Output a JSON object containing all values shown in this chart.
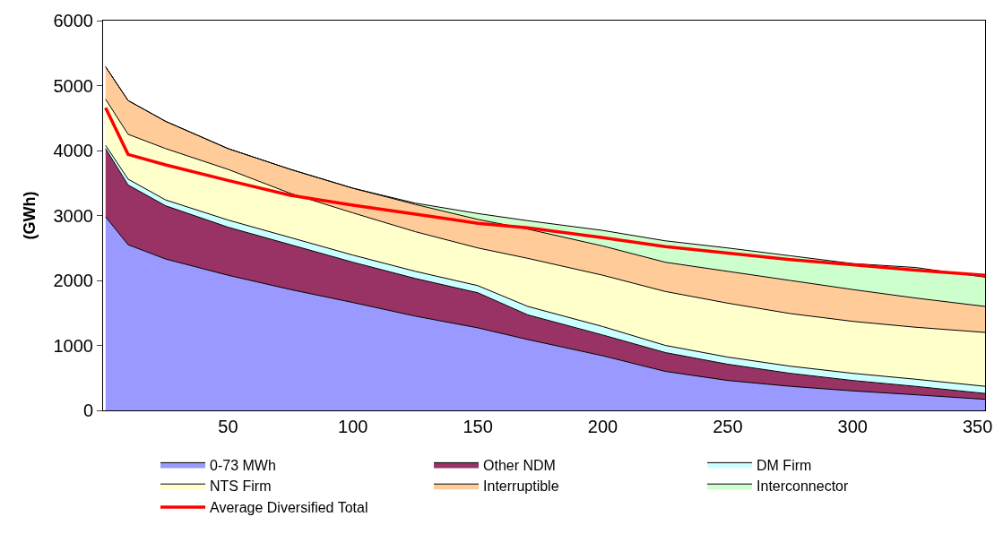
{
  "chart_data": {
    "type": "area",
    "stacked": true,
    "ylabel": "(GWh)",
    "x": [
      1,
      10,
      25,
      50,
      75,
      100,
      125,
      150,
      170,
      200,
      225,
      250,
      275,
      300,
      325,
      353
    ],
    "xlim": [
      0,
      353
    ],
    "xticks": [
      50,
      100,
      150,
      200,
      250,
      300,
      350
    ],
    "ylim": [
      0,
      6000
    ],
    "yticks": [
      0,
      1000,
      2000,
      3000,
      4000,
      5000,
      6000
    ],
    "legend": "bottom",
    "series": [
      {
        "name": "0-73 MWh",
        "color": "#9999ff",
        "values": [
          2980,
          2550,
          2330,
          2080,
          1860,
          1660,
          1450,
          1270,
          1090,
          840,
          600,
          460,
          370,
          300,
          240,
          170
        ]
      },
      {
        "name": "Other NDM",
        "color": "#993366",
        "values": [
          1050,
          920,
          820,
          740,
          690,
          620,
          580,
          540,
          380,
          320,
          290,
          250,
          200,
          160,
          130,
          90
        ]
      },
      {
        "name": "DM Firm",
        "color": "#ccffff",
        "values": [
          50,
          90,
          90,
          110,
          110,
          110,
          110,
          110,
          130,
          130,
          110,
          110,
          110,
          110,
          110,
          110
        ]
      },
      {
        "name": "NTS Firm",
        "color": "#ffffcc",
        "values": [
          710,
          690,
          790,
          780,
          680,
          650,
          610,
          580,
          740,
          790,
          830,
          830,
          810,
          800,
          800,
          830
        ]
      },
      {
        "name": "Interruptible",
        "color": "#ffcc99",
        "values": [
          500,
          520,
          420,
          320,
          370,
          380,
          420,
          440,
          450,
          450,
          450,
          490,
          510,
          490,
          450,
          400
        ]
      },
      {
        "name": "Interconnector",
        "color": "#ccffcc",
        "values": [
          0,
          0,
          0,
          0,
          0,
          0,
          20,
          90,
          130,
          240,
          330,
          360,
          380,
          400,
          470,
          450
        ]
      },
      {
        "name": "Average Diversified Total",
        "type": "line",
        "color": "#ff0000",
        "line_style": "solid",
        "values": [
          4660,
          3940,
          3780,
          3540,
          3310,
          3160,
          3020,
          2880,
          2810,
          2660,
          2520,
          2420,
          2320,
          2240,
          2160,
          2080
        ]
      }
    ]
  }
}
